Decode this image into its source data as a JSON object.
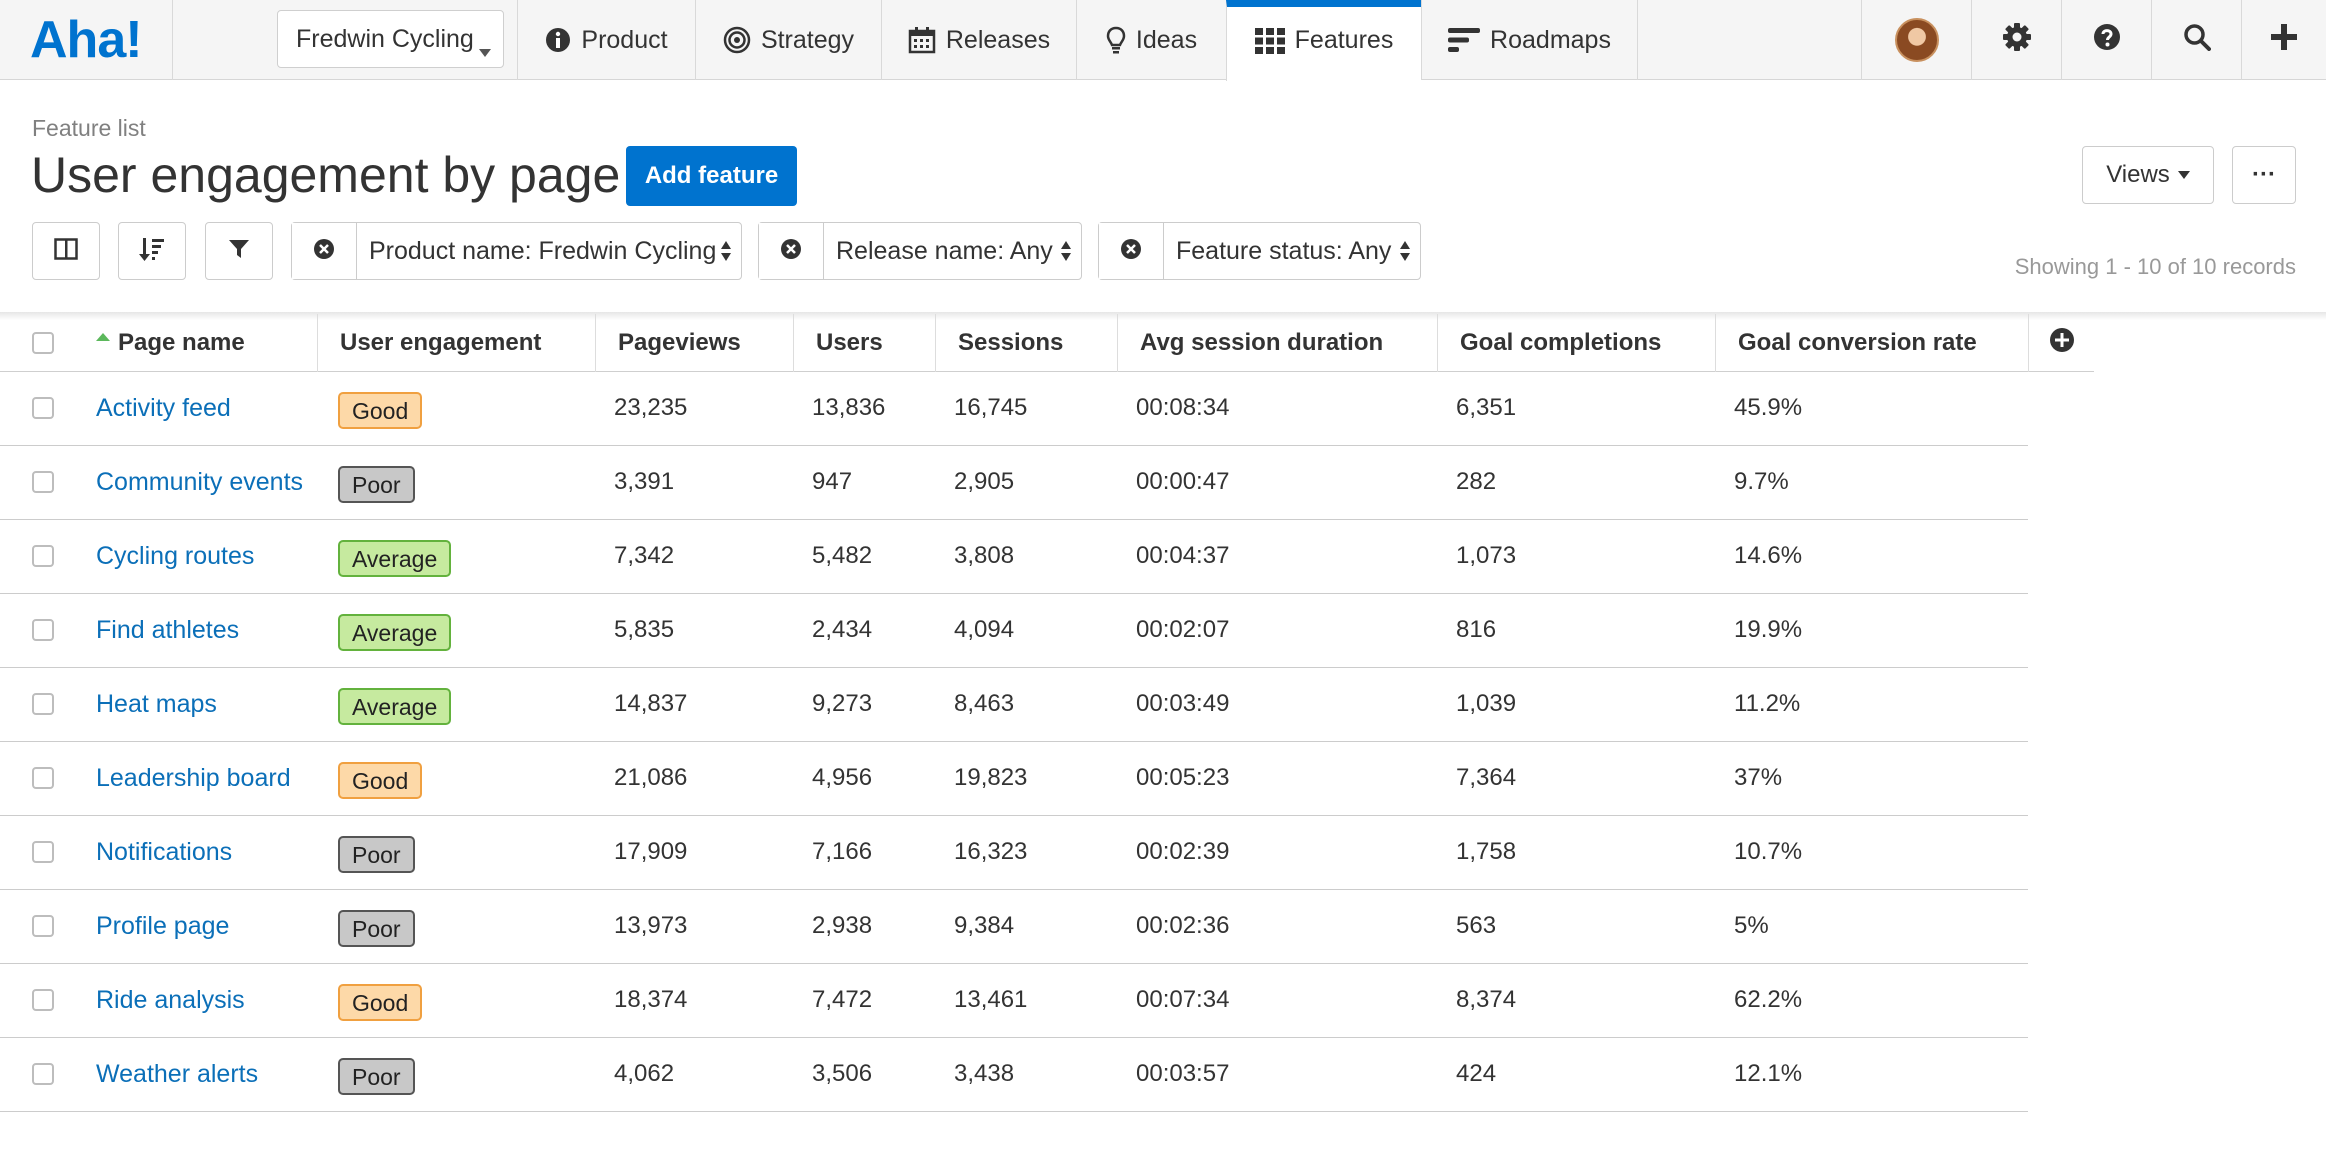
{
  "app": {
    "logo": "Aha!",
    "product_selector": "Fredwin Cycling",
    "nav": [
      {
        "label": "Product",
        "icon": "info-icon"
      },
      {
        "label": "Strategy",
        "icon": "target-icon"
      },
      {
        "label": "Releases",
        "icon": "calendar-icon"
      },
      {
        "label": "Ideas",
        "icon": "lightbulb-icon"
      },
      {
        "label": "Features",
        "icon": "grid-icon",
        "active": true
      },
      {
        "label": "Roadmaps",
        "icon": "roadmap-icon"
      }
    ]
  },
  "header": {
    "breadcrumb": "Feature list",
    "title": "User engagement by page",
    "add_button": "Add feature",
    "views_button": "Views",
    "more_button": "···"
  },
  "filters": {
    "product": "Product name: Fredwin Cycling",
    "release": "Release name: Any",
    "status": "Feature status: Any",
    "records": "Showing 1 - 10 of 10 records"
  },
  "table": {
    "columns": [
      "Page name",
      "User engagement",
      "Pageviews",
      "Users",
      "Sessions",
      "Avg session duration",
      "Goal completions",
      "Goal conversion rate"
    ],
    "rows": [
      {
        "name": "Activity feed",
        "engagement": "Good",
        "level": "good",
        "pageviews": "23,235",
        "users": "13,836",
        "sessions": "16,745",
        "duration": "00:08:34",
        "completions": "6,351",
        "rate": "45.9%"
      },
      {
        "name": "Community events",
        "engagement": "Poor",
        "level": "poor",
        "pageviews": "3,391",
        "users": "947",
        "sessions": "2,905",
        "duration": "00:00:47",
        "completions": "282",
        "rate": "9.7%"
      },
      {
        "name": "Cycling routes",
        "engagement": "Average",
        "level": "average",
        "pageviews": "7,342",
        "users": "5,482",
        "sessions": "3,808",
        "duration": "00:04:37",
        "completions": "1,073",
        "rate": "14.6%"
      },
      {
        "name": "Find athletes",
        "engagement": "Average",
        "level": "average",
        "pageviews": "5,835",
        "users": "2,434",
        "sessions": "4,094",
        "duration": "00:02:07",
        "completions": "816",
        "rate": "19.9%"
      },
      {
        "name": "Heat maps",
        "engagement": "Average",
        "level": "average",
        "pageviews": "14,837",
        "users": "9,273",
        "sessions": "8,463",
        "duration": "00:03:49",
        "completions": "1,039",
        "rate": "11.2%"
      },
      {
        "name": "Leadership board",
        "engagement": "Good",
        "level": "good",
        "pageviews": "21,086",
        "users": "4,956",
        "sessions": "19,823",
        "duration": "00:05:23",
        "completions": "7,364",
        "rate": "37%"
      },
      {
        "name": "Notifications",
        "engagement": "Poor",
        "level": "poor",
        "pageviews": "17,909",
        "users": "7,166",
        "sessions": "16,323",
        "duration": "00:02:39",
        "completions": "1,758",
        "rate": "10.7%"
      },
      {
        "name": "Profile page",
        "engagement": "Poor",
        "level": "poor",
        "pageviews": "13,973",
        "users": "2,938",
        "sessions": "9,384",
        "duration": "00:02:36",
        "completions": "563",
        "rate": "5%"
      },
      {
        "name": "Ride analysis",
        "engagement": "Good",
        "level": "good",
        "pageviews": "18,374",
        "users": "7,472",
        "sessions": "13,461",
        "duration": "00:07:34",
        "completions": "8,374",
        "rate": "62.2%"
      },
      {
        "name": "Weather alerts",
        "engagement": "Poor",
        "level": "poor",
        "pageviews": "4,062",
        "users": "3,506",
        "sessions": "3,438",
        "duration": "00:03:57",
        "completions": "424",
        "rate": "12.1%"
      }
    ]
  },
  "colors": {
    "brand": "#0073cf",
    "link": "#0b6fb8",
    "good": "#fdd9a8",
    "poor": "#c8c8c8",
    "average": "#c6ea9f"
  }
}
